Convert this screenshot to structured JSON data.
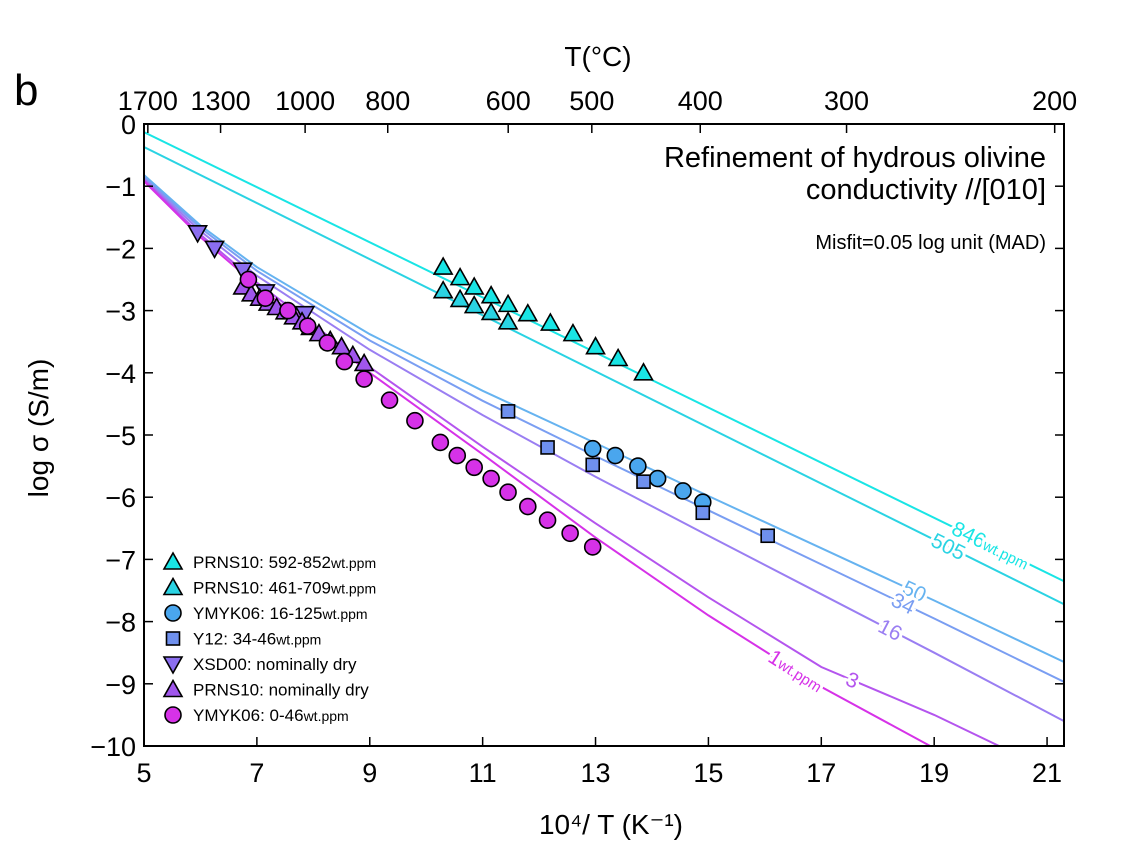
{
  "panel_label": "b",
  "chart_data": {
    "type": "scatter",
    "xlabel": "10⁴/ T (K⁻¹)",
    "ylabel": "log σ (S/m)",
    "top_axis_label": "T(°C)",
    "xlim": [
      5,
      21.3
    ],
    "ylim": [
      -10,
      0
    ],
    "x_ticks": [
      5,
      7,
      9,
      11,
      13,
      15,
      17,
      19,
      21
    ],
    "y_ticks": [
      0,
      -1,
      -2,
      -3,
      -4,
      -5,
      -6,
      -7,
      -8,
      -9,
      -10
    ],
    "y_tick_labels": [
      "0",
      "−1",
      "−2",
      "−3",
      "−4",
      "−5",
      "−6",
      "−7",
      "−8",
      "−9",
      "−10"
    ],
    "top_ticks_celsius": [
      1700,
      1300,
      1000,
      800,
      600,
      500,
      400,
      300,
      200
    ],
    "top_tick_labels": [
      "1700",
      "1300",
      "1000",
      "800",
      "600",
      "500",
      "400",
      "300",
      "200"
    ],
    "annotation_title_line1": "Refinement of hydrous olivine",
    "annotation_title_line2": "conductivity //[010]",
    "annotation_misfit": "Misfit=0.05 log unit (MAD)",
    "curves": [
      {
        "label": "846",
        "unit": "wt.ppm",
        "color": "#19e5e5",
        "x": [
          5,
          21.3
        ],
        "y": [
          -0.13,
          -7.35
        ]
      },
      {
        "label": "505",
        "unit": "",
        "color": "#2ad3e3",
        "x": [
          5,
          21.3
        ],
        "y": [
          -0.37,
          -7.72
        ]
      },
      {
        "label": "50",
        "unit": "",
        "color": "#66b3f0",
        "x": [
          5,
          6,
          7,
          9,
          11,
          13,
          15,
          17,
          19,
          21.3
        ],
        "y": [
          -0.82,
          -1.63,
          -2.3,
          -3.38,
          -4.29,
          -5.13,
          -5.98,
          -6.82,
          -7.66,
          -8.65
        ]
      },
      {
        "label": "34",
        "unit": "",
        "color": "#7a9ef2",
        "x": [
          5,
          6,
          7,
          9,
          11,
          13,
          15,
          17,
          19,
          21.3
        ],
        "y": [
          -0.85,
          -1.67,
          -2.36,
          -3.48,
          -4.45,
          -5.34,
          -6.21,
          -7.08,
          -7.95,
          -8.97
        ]
      },
      {
        "label": "16",
        "unit": "",
        "color": "#9a7ef2",
        "x": [
          5,
          6,
          7,
          9,
          11,
          13,
          15,
          17,
          19,
          21.3
        ],
        "y": [
          -0.88,
          -1.72,
          -2.44,
          -3.63,
          -4.68,
          -5.67,
          -6.62,
          -7.56,
          -8.5,
          -9.6
        ]
      },
      {
        "label": "3",
        "unit": "",
        "color": "#b455ee",
        "x": [
          5,
          6,
          7,
          9,
          11,
          13,
          15,
          17,
          19,
          20.15
        ],
        "y": [
          -0.9,
          -1.78,
          -2.55,
          -3.91,
          -5.19,
          -6.42,
          -7.61,
          -8.73,
          -9.5,
          -10
        ]
      },
      {
        "label": "1",
        "unit": "wt.ppm",
        "color": "#d632e8",
        "x": [
          5,
          6,
          7,
          9,
          11,
          13,
          15,
          17,
          18.93
        ],
        "y": [
          -0.92,
          -1.82,
          -2.6,
          -4.0,
          -5.31,
          -6.65,
          -7.9,
          -9.05,
          -10
        ]
      }
    ],
    "series": [
      {
        "name": "PRNS10: 592-852",
        "unit": "wt.ppm",
        "marker": "triangle-up",
        "color": "#19e5e5",
        "x": [
          10.3,
          10.6,
          10.85,
          11.15,
          11.45,
          11.8,
          12.2,
          12.6,
          13.0,
          13.4,
          13.85
        ],
        "y": [
          -2.3,
          -2.47,
          -2.62,
          -2.76,
          -2.9,
          -3.05,
          -3.2,
          -3.37,
          -3.58,
          -3.77,
          -4.0
        ]
      },
      {
        "name": "PRNS10: 461-709",
        "unit": "wt.ppm",
        "marker": "triangle-up",
        "color": "#2ad3e3",
        "x": [
          10.3,
          10.6,
          10.85,
          11.15,
          11.45
        ],
        "y": [
          -2.68,
          -2.82,
          -2.92,
          -3.03,
          -3.18
        ]
      },
      {
        "name": "YMYK06: 16-125",
        "unit": "wt.ppm",
        "marker": "circle",
        "color": "#4aa6ee",
        "x": [
          12.95,
          13.35,
          13.75,
          14.1,
          14.55,
          14.9
        ],
        "y": [
          -5.22,
          -5.33,
          -5.5,
          -5.7,
          -5.9,
          -6.08
        ]
      },
      {
        "name": "Y12: 34-46",
        "unit": "wt.ppm",
        "marker": "square",
        "color": "#6f90ee",
        "x": [
          11.45,
          12.15,
          12.95,
          13.85,
          14.9,
          16.05
        ],
        "y": [
          -4.62,
          -5.2,
          -5.48,
          -5.75,
          -6.25,
          -6.62
        ]
      },
      {
        "name": "XSD00: nominally dry",
        "unit": "",
        "marker": "triangle-down",
        "color": "#8b6ef0",
        "x": [
          5.95,
          6.25,
          6.75,
          7.15,
          7.85
        ],
        "y": [
          -1.75,
          -2.0,
          -2.35,
          -2.7,
          -3.05
        ]
      },
      {
        "name": "PRNS10: nominally dry",
        "unit": "",
        "marker": "triangle-up",
        "color": "#a056ec",
        "x": [
          6.75,
          6.9,
          7.05,
          7.2,
          7.35,
          7.5,
          7.65,
          7.8,
          7.95,
          8.1,
          8.3,
          8.5,
          8.7,
          8.9
        ],
        "y": [
          -2.62,
          -2.73,
          -2.8,
          -2.88,
          -2.95,
          -3.02,
          -3.1,
          -3.18,
          -3.27,
          -3.37,
          -3.48,
          -3.58,
          -3.72,
          -3.85
        ]
      },
      {
        "name": "YMYK06: 0-46",
        "unit": "wt.ppm",
        "marker": "circle",
        "color": "#d632e8",
        "x": [
          6.85,
          7.15,
          7.55,
          7.9,
          8.25,
          8.55,
          8.9,
          9.35,
          9.8,
          10.25,
          10.55,
          10.85,
          11.15,
          11.45,
          11.8,
          12.15,
          12.55,
          12.95
        ],
        "y": [
          -2.5,
          -2.8,
          -3.0,
          -3.25,
          -3.52,
          -3.82,
          -4.1,
          -4.44,
          -4.77,
          -5.12,
          -5.33,
          -5.52,
          -5.7,
          -5.92,
          -6.15,
          -6.37,
          -6.58,
          -6.8
        ]
      }
    ],
    "legend_position": "bottom-left",
    "grid": false
  }
}
